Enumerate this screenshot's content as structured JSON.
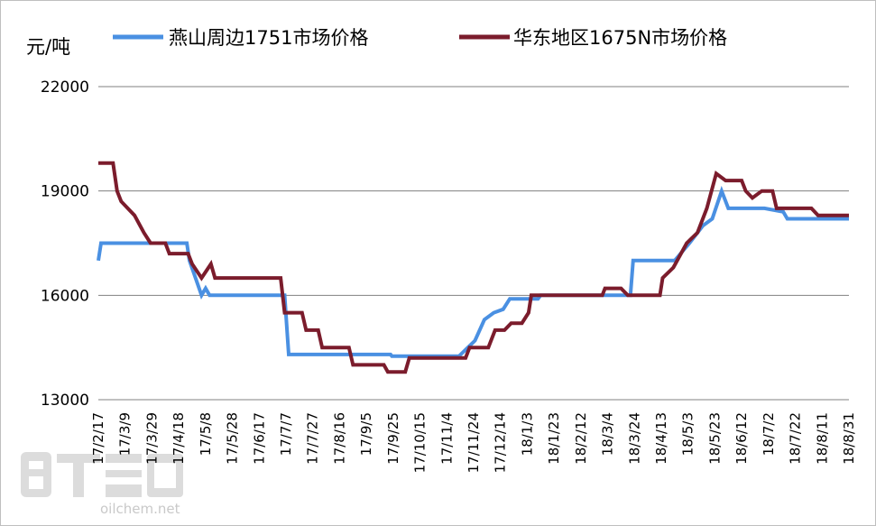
{
  "chart_data": {
    "type": "line",
    "unit": "元/吨",
    "ylim": [
      13000,
      22000
    ],
    "yticks": [
      "22000",
      "19000",
      "16000",
      "13000"
    ],
    "ytick_values": [
      22000,
      19000,
      16000,
      13000
    ],
    "grid": true,
    "legend_position": "top",
    "x_tick_labels": [
      "17/2/17",
      "17/3/9",
      "17/3/29",
      "17/4/18",
      "17/5/8",
      "17/5/28",
      "17/6/17",
      "17/7/7",
      "17/7/27",
      "17/8/16",
      "17/9/5",
      "17/9/25",
      "17/10/15",
      "17/11/4",
      "17/11/24",
      "17/12/14",
      "18/1/3",
      "18/1/23",
      "18/2/12",
      "18/3/4",
      "18/3/24",
      "18/4/13",
      "18/5/3",
      "18/5/23",
      "18/6/12",
      "18/7/2",
      "18/7/22",
      "18/8/11",
      "18/8/31"
    ],
    "x_start": "2017-02-17",
    "x_end": "2018-08-31",
    "series": [
      {
        "name": "燕山周边1751市场价格",
        "color": "#4a90e2",
        "points": [
          [
            "2017-02-17",
            17000
          ],
          [
            "2017-02-19",
            17500
          ],
          [
            "2017-04-24",
            17500
          ],
          [
            "2017-04-26",
            17000
          ],
          [
            "2017-05-05",
            16000
          ],
          [
            "2017-05-08",
            16200
          ],
          [
            "2017-05-11",
            16000
          ],
          [
            "2017-07-06",
            16000
          ],
          [
            "2017-07-09",
            14300
          ],
          [
            "2017-09-23",
            14300
          ],
          [
            "2017-09-24",
            14250
          ],
          [
            "2017-11-13",
            14250
          ],
          [
            "2017-11-25",
            14700
          ],
          [
            "2017-12-02",
            15300
          ],
          [
            "2017-12-09",
            15500
          ],
          [
            "2017-12-16",
            15600
          ],
          [
            "2017-12-21",
            15900
          ],
          [
            "2018-01-11",
            15900
          ],
          [
            "2018-01-13",
            16000
          ],
          [
            "2018-03-21",
            16000
          ],
          [
            "2018-03-23",
            17000
          ],
          [
            "2018-04-23",
            17000
          ],
          [
            "2018-05-04",
            17500
          ],
          [
            "2018-05-14",
            18000
          ],
          [
            "2018-05-21",
            18200
          ],
          [
            "2018-05-28",
            19000
          ],
          [
            "2018-06-02",
            18500
          ],
          [
            "2018-06-29",
            18500
          ],
          [
            "2018-07-13",
            18400
          ],
          [
            "2018-07-16",
            18200
          ],
          [
            "2018-08-31",
            18200
          ]
        ]
      },
      {
        "name": "华东地区1675N市场价格",
        "color": "#7b1c2c",
        "points": [
          [
            "2017-02-17",
            19800
          ],
          [
            "2017-02-28",
            19800
          ],
          [
            "2017-03-03",
            19000
          ],
          [
            "2017-03-06",
            18700
          ],
          [
            "2017-03-16",
            18300
          ],
          [
            "2017-03-23",
            17800
          ],
          [
            "2017-03-28",
            17500
          ],
          [
            "2017-04-08",
            17500
          ],
          [
            "2017-04-11",
            17200
          ],
          [
            "2017-04-25",
            17200
          ],
          [
            "2017-04-28",
            16900
          ],
          [
            "2017-05-05",
            16500
          ],
          [
            "2017-05-12",
            16900
          ],
          [
            "2017-05-15",
            16500
          ],
          [
            "2017-07-03",
            16500
          ],
          [
            "2017-07-06",
            15500
          ],
          [
            "2017-07-19",
            15500
          ],
          [
            "2017-07-22",
            15000
          ],
          [
            "2017-07-31",
            15000
          ],
          [
            "2017-08-03",
            14500
          ],
          [
            "2017-08-23",
            14500
          ],
          [
            "2017-08-26",
            14000
          ],
          [
            "2017-09-18",
            14000
          ],
          [
            "2017-09-21",
            13800
          ],
          [
            "2017-10-04",
            13800
          ],
          [
            "2017-10-07",
            14200
          ],
          [
            "2017-11-18",
            14200
          ],
          [
            "2017-11-21",
            14500
          ],
          [
            "2017-12-05",
            14500
          ],
          [
            "2017-12-10",
            15000
          ],
          [
            "2017-12-17",
            15000
          ],
          [
            "2017-12-22",
            15200
          ],
          [
            "2017-12-30",
            15200
          ],
          [
            "2018-01-04",
            15500
          ],
          [
            "2018-01-06",
            16000
          ],
          [
            "2018-02-28",
            16000
          ],
          [
            "2018-03-02",
            16200
          ],
          [
            "2018-03-14",
            16200
          ],
          [
            "2018-03-19",
            16000
          ],
          [
            "2018-04-12",
            16000
          ],
          [
            "2018-04-14",
            16500
          ],
          [
            "2018-04-22",
            16800
          ],
          [
            "2018-05-02",
            17500
          ],
          [
            "2018-05-10",
            17800
          ],
          [
            "2018-05-17",
            18500
          ],
          [
            "2018-05-24",
            19500
          ],
          [
            "2018-05-31",
            19300
          ],
          [
            "2018-06-12",
            19300
          ],
          [
            "2018-06-15",
            19000
          ],
          [
            "2018-06-20",
            18800
          ],
          [
            "2018-06-27",
            19000
          ],
          [
            "2018-07-05",
            19000
          ],
          [
            "2018-07-08",
            18500
          ],
          [
            "2018-08-03",
            18500
          ],
          [
            "2018-08-08",
            18300
          ],
          [
            "2018-08-31",
            18300
          ]
        ]
      }
    ]
  },
  "watermark": {
    "text": "oilchem.net"
  }
}
